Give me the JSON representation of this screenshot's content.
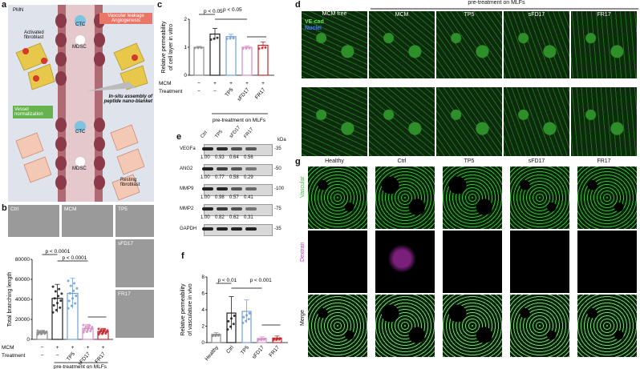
{
  "panels": {
    "a": "a",
    "b": "b",
    "c": "c",
    "d": "d",
    "e": "e",
    "f": "f",
    "g": "g"
  },
  "panel_a": {
    "labels": {
      "pmn": "PMN",
      "activated_fibroblast": "Activated\nfibroblast",
      "ctc1": "CTC",
      "mdsc1": "MDSC",
      "vascular_leakage": "Vascular leakage\nAngiogenesis",
      "in_situ": "In-situ assembly of\npeptide nano-blanket",
      "vessel_norm": "Vessel\nnormalization",
      "ctc2": "CTC",
      "mdsc2": "MDSC",
      "resting": "Resting\nfibroblast"
    },
    "colors": {
      "vascular_box": "#e8776a",
      "vessel_box": "#66b24e",
      "background": "#d8dde8"
    }
  },
  "panel_b": {
    "images": [
      "Ctrl",
      "MCM",
      "TP5",
      "sFD17",
      "FR17"
    ],
    "pvalues": [
      "p < 0.0001",
      "p < 0.0001"
    ],
    "chart_data": {
      "type": "bar",
      "ylabel": "Total branching length",
      "ylim": [
        0,
        80000
      ],
      "yticks": [
        "0",
        "20000",
        "40000",
        "60000",
        "80000"
      ],
      "mcm_row": [
        "−",
        "+",
        "+",
        "+",
        "+"
      ],
      "treatment_row": [
        "−",
        "−",
        "TP5",
        "sFD17",
        "FR17"
      ],
      "row_labels": [
        "MCM",
        "Treatment"
      ],
      "values": [
        7000,
        41000,
        46000,
        11000,
        8000
      ],
      "errors": [
        2000,
        14000,
        15000,
        4000,
        3000
      ],
      "colors": [
        "#8c8c8c",
        "#222222",
        "#6fa1dd",
        "#d58ec7",
        "#c0282f"
      ]
    },
    "footer": "pre-treatment on MLFs"
  },
  "panel_c": {
    "pvalues": [
      "p < 0.05",
      "p < 0.05"
    ],
    "chart_data": {
      "type": "bar",
      "ylabel": "Relative permeability\nof cell layer in vitro",
      "ylim": [
        0,
        2
      ],
      "yticks": [
        "0",
        "1",
        "2"
      ],
      "mcm_row": [
        "−",
        "+",
        "+",
        "+",
        "+"
      ],
      "treatment_row": [
        "−",
        "−",
        "TP5",
        "sFD17",
        "FR17"
      ],
      "row_labels": [
        "MCM",
        "Treatment"
      ],
      "values": [
        1.0,
        1.47,
        1.38,
        1.0,
        1.07
      ],
      "errors": [
        0.03,
        0.2,
        0.08,
        0.05,
        0.12
      ],
      "colors": [
        "#8c8c8c",
        "#222222",
        "#6fa1dd",
        "#d58ec7",
        "#c0282f"
      ]
    },
    "footer": "pre-treatment on MLFs"
  },
  "panel_d": {
    "header": "pre-treatment on MLFs",
    "stain_vecad": "VE-cad",
    "stain_nuclei": "Nuclei",
    "columns": [
      "MCM free",
      "MCM",
      "TP5",
      "sFD17",
      "FR17"
    ]
  },
  "panel_e": {
    "lanes": [
      "Ctrl",
      "TP5",
      "sFD17",
      "FR17"
    ],
    "kda": "kDa",
    "rows": [
      {
        "name": "VEGFa",
        "values": [
          "1.00",
          "0.93",
          "0.64",
          "0.56"
        ],
        "marker": "35"
      },
      {
        "name": "ANG2",
        "values": [
          "1.00",
          "0.77",
          "0.58",
          "0.29"
        ],
        "marker": "50"
      },
      {
        "name": "MMP9",
        "values": [
          "1.00",
          "0.98",
          "0.57",
          "0.41"
        ],
        "marker": "100"
      },
      {
        "name": "MMP2",
        "values": [
          "1.00",
          "0.82",
          "0.62",
          "0.31"
        ],
        "marker": "75"
      },
      {
        "name": "GAPDH",
        "values": [],
        "marker": "35"
      }
    ]
  },
  "panel_f": {
    "pvalues": [
      "p < 0.01",
      "p < 0.001"
    ],
    "chart_data": {
      "type": "bar",
      "ylabel": "Relative permeability\nof vasculature in vivo",
      "ylim": [
        0,
        8
      ],
      "yticks": [
        "0",
        "2",
        "4",
        "6",
        "8"
      ],
      "categories": [
        "Healthy",
        "Ctrl",
        "TP5",
        "sFD17",
        "FR17"
      ],
      "values": [
        1.0,
        3.6,
        3.8,
        0.5,
        0.55
      ],
      "errors": [
        0.2,
        2.0,
        1.4,
        0.2,
        0.25
      ],
      "colors": [
        "#8c8c8c",
        "#222222",
        "#6fa1dd",
        "#d58ec7",
        "#c0282f"
      ]
    }
  },
  "panel_g": {
    "columns": [
      "Healthy",
      "Ctrl",
      "TP5",
      "sFD17",
      "FR17"
    ],
    "rows": [
      "Vascular",
      "Dextran",
      "Merge"
    ]
  }
}
